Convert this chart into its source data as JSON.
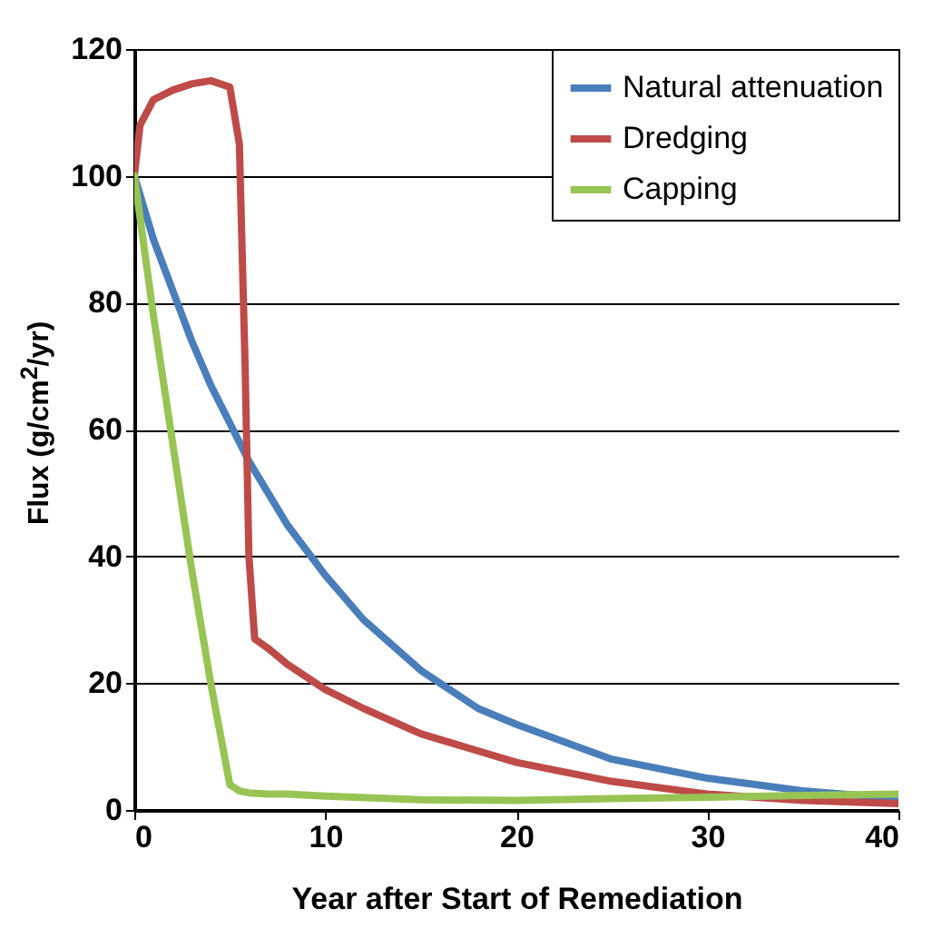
{
  "chart_data": {
    "type": "line",
    "xlabel": "Year after Start of Remediation",
    "ylabel": "Flux (g/cm$^{2}$/yr)",
    "xlim": [
      0,
      40
    ],
    "xticks": [
      0,
      10,
      20,
      30,
      40
    ],
    "ylim": [
      0,
      120
    ],
    "yticks": [
      0,
      20,
      40,
      60,
      80,
      100,
      120
    ],
    "grid": "y",
    "legend": "top right",
    "marker": "none",
    "line_style": "solid",
    "series": [
      {
        "name": "Natural attenuation",
        "color": "#4a7ebb",
        "x": [
          0,
          1,
          2,
          3,
          4,
          5,
          6,
          8,
          10,
          12,
          15,
          18,
          20,
          25,
          30,
          35,
          40
        ],
        "values": [
          100,
          90,
          82,
          74,
          67,
          61,
          55,
          45,
          37,
          30,
          22,
          16,
          13.5,
          8,
          5,
          3,
          1.8
        ]
      },
      {
        "name": "Dredging",
        "color": "#be4b48",
        "x": [
          0,
          0.3,
          1,
          2,
          3,
          4,
          5,
          5.5,
          5.8,
          6,
          6.3,
          7,
          8,
          10,
          12,
          15,
          20,
          25,
          30,
          35,
          40
        ],
        "values": [
          100,
          108,
          112,
          113.5,
          114.5,
          115,
          114,
          105,
          70,
          40,
          27,
          25.5,
          23,
          19,
          16,
          12,
          7.5,
          4.5,
          2.5,
          1.5,
          1
        ]
      },
      {
        "name": "Capping",
        "color": "#98c454",
        "x": [
          0,
          1,
          2,
          3,
          4,
          5,
          5.5,
          6,
          7,
          8,
          10,
          15,
          20,
          25,
          30,
          35,
          40
        ],
        "values": [
          100,
          78,
          58,
          38,
          20,
          4,
          3,
          2.7,
          2.5,
          2.5,
          2.2,
          1.6,
          1.5,
          1.8,
          2,
          2.3,
          2.5
        ]
      }
    ]
  }
}
